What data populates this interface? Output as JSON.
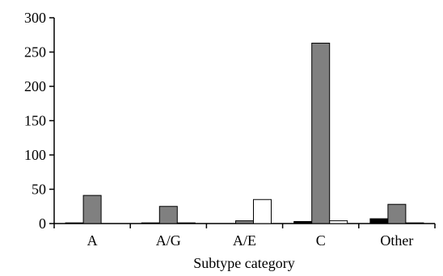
{
  "chart_data": {
    "type": "bar",
    "title": "",
    "xlabel": "Subtype category",
    "ylabel": "",
    "ylim": [
      0,
      300
    ],
    "yticks": [
      0,
      50,
      100,
      150,
      200,
      250,
      300
    ],
    "grid": false,
    "legend": "none",
    "categories": [
      "A",
      "A/G",
      "A/E",
      "C",
      "Other"
    ],
    "series": [
      {
        "color": "#000000",
        "values": [
          1,
          1,
          0,
          3,
          7
        ]
      },
      {
        "color": "#808080",
        "values": [
          41,
          25,
          4,
          263,
          28
        ]
      },
      {
        "color": "#ffffff",
        "values": [
          0,
          1,
          35,
          4,
          1
        ]
      }
    ]
  }
}
